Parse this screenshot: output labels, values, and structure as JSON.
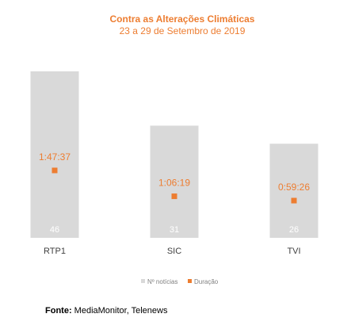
{
  "chart_data": {
    "type": "bar",
    "title": "Contra as Alterações Climáticas",
    "subtitle": "23 a 29 de Setembro de 2019",
    "categories": [
      "RTP1",
      "SIC",
      "TVI"
    ],
    "series": [
      {
        "name": "Nº notícias",
        "type": "bar",
        "color": "#D9D9D9",
        "values": [
          46,
          31,
          26
        ]
      },
      {
        "name": "Duração",
        "type": "marker",
        "color": "#ED7D31",
        "values": [
          "1:47:37",
          "1:06:19",
          "0:59:26"
        ],
        "seconds": [
          6457,
          3979,
          3566
        ]
      }
    ],
    "legend_position": "bottom",
    "grid": false
  },
  "source": {
    "label": "Fonte:",
    "text": "MediaMonitor, Telenews"
  }
}
